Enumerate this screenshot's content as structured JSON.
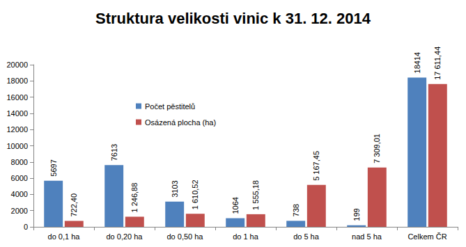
{
  "chart_data": {
    "type": "bar",
    "title": "Struktura velikosti vinic k 31. 12. 2014",
    "categories": [
      "do 0,1 ha",
      "do 0,20 ha",
      "do 0,50 ha",
      "do 1 ha",
      "do 5 ha",
      "nad 5 ha",
      "Celkem ČR"
    ],
    "series": [
      {
        "name": "Počet pěstitelů",
        "color": "#4f81bd",
        "values": [
          5697,
          7613,
          3103,
          1064,
          738,
          199,
          18414
        ]
      },
      {
        "name": "Osázená plocha (ha)",
        "color": "#c0504d",
        "values": [
          722.4,
          1246.88,
          1610.52,
          1555.18,
          5167.45,
          7309.01,
          17611.44
        ],
        "value_labels": [
          "722,40",
          "1 246,88",
          "1 610,52",
          "1 555,18",
          "5 167,45",
          "7 309,01",
          "17 611,44"
        ]
      }
    ],
    "ylim": [
      0,
      20000
    ],
    "yticks": [
      0,
      2000,
      4000,
      6000,
      8000,
      10000,
      12000,
      14000,
      16000,
      18000,
      20000
    ],
    "grid": false,
    "legend": "upper left",
    "data_labels": true
  }
}
